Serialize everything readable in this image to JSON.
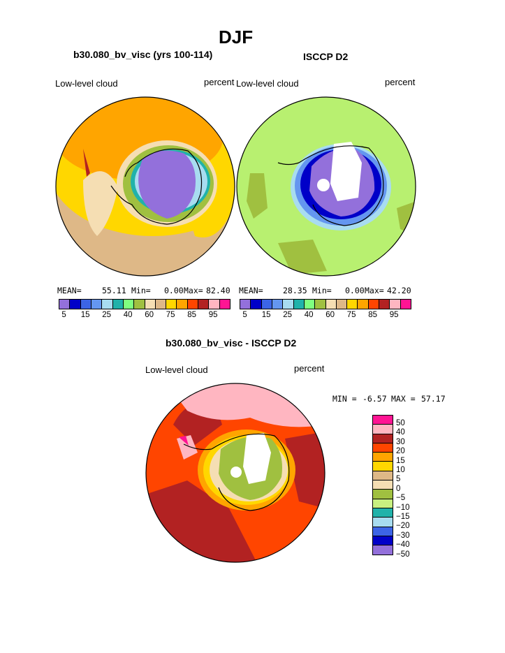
{
  "title": "DJF",
  "panels": [
    {
      "subtitle": "b30.080_bv_visc (yrs 100-114)",
      "field": "Low-level cloud",
      "units": "percent",
      "stats": {
        "mean_label": "MEAN=",
        "mean": "55.11",
        "min_label": "Min=",
        "min": "0.00",
        "max_label": "Max=",
        "max": "82.40"
      }
    },
    {
      "subtitle": "ISCCP D2",
      "field": "Low-level cloud",
      "units": "percent",
      "stats": {
        "mean_label": "MEAN=",
        "mean": "28.35",
        "min_label": "Min=",
        "min": "0.00",
        "max_label": "Max=",
        "max": "42.20"
      }
    },
    {
      "subtitle": "b30.080_bv_visc - ISCCP D2",
      "field": "Low-level cloud",
      "units": "percent",
      "stats": {
        "min_label": "MIN =",
        "min": "-6.57",
        "max_label": "MAX =",
        "max": "57.17"
      }
    }
  ],
  "colorbar_top": {
    "colors": [
      "#9370db",
      "#0000c8",
      "#3c64e6",
      "#6496f0",
      "#a8dcf0",
      "#20b2aa",
      "#7fff7f",
      "#a0c040",
      "#f5deb3",
      "#deb887",
      "#ffd700",
      "#ffa500",
      "#ff4500",
      "#b22222",
      "#ffb6c1",
      "#ff1493"
    ],
    "ticks": [
      "5",
      "15",
      "25",
      "40",
      "60",
      "75",
      "85",
      "95"
    ]
  },
  "colorbar_diff": {
    "colors": [
      "#ff1493",
      "#ffb6c1",
      "#b22222",
      "#ff4500",
      "#ffa500",
      "#ffd700",
      "#deb887",
      "#f5deb3",
      "#a0c040",
      "#c8f080",
      "#20b2aa",
      "#a8dcf0",
      "#3c64e6",
      "#0000c8",
      "#9370db"
    ],
    "ticks": [
      "50",
      "40",
      "30",
      "20",
      "15",
      "10",
      "5",
      "0",
      "−5",
      "−10",
      "−15",
      "−20",
      "−30",
      "−40",
      "−50"
    ]
  },
  "map_colors": {
    "ocean_a": "#deb887",
    "band_a": "#ffa500",
    "ice_a": "#9370db",
    "ocean_b": "#b8f070",
    "ice_b": "#9370db",
    "ocean_c": "#b22222",
    "band_c": "#ff4500",
    "ice_c": "#a0c040",
    "pink": "#ffb6c1"
  }
}
